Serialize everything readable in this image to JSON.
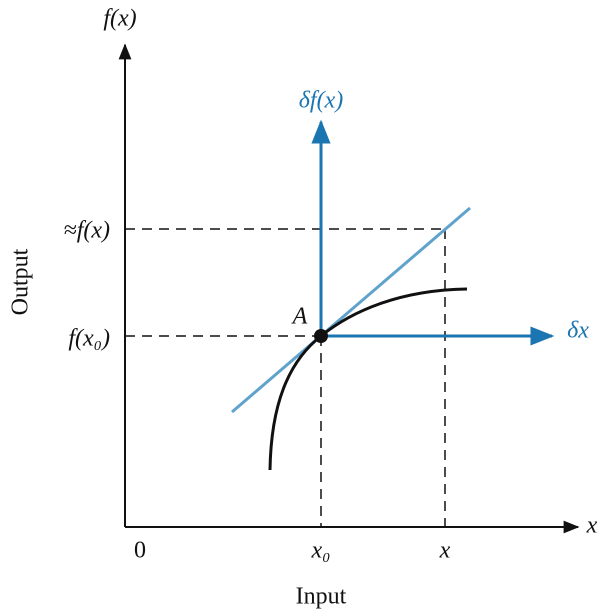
{
  "diagram": {
    "y_axis_label": "f(x)",
    "x_axis_label": "x",
    "output_label": "Output",
    "input_label": "Input",
    "approx_label": "≈f(x)",
    "fx0_label": "f(x₀)",
    "point_label": "A",
    "delta_y_label": "δf(x)",
    "delta_x_label": "δx",
    "origin_label": "0",
    "x0_label": "x₀",
    "x_label": "x"
  }
}
